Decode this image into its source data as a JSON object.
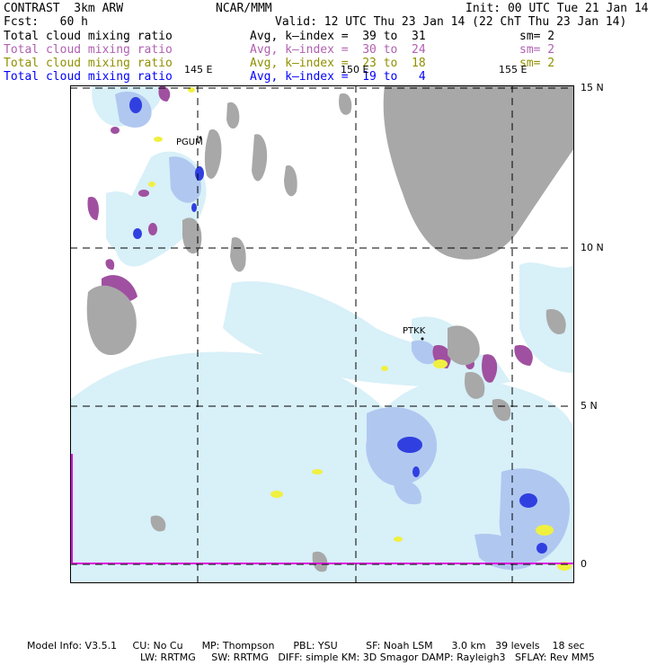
{
  "header": {
    "model": "CONTRAST  3km ARW",
    "center": "NCAR/MMM",
    "init": "Init: 00 UTC Tue 21 Jan 14",
    "fcst": "Fcst:   60 h",
    "valid": "Valid: 12 UTC Thu 23 Jan 14 (22 ChT Thu 23 Jan 14)"
  },
  "fields": [
    {
      "name": "Total cloud mixing ratio",
      "avg": "Avg, k–index =  39 to  31",
      "sm": "sm= 2",
      "color": "#000000"
    },
    {
      "name": "Total cloud mixing ratio",
      "avg": "Avg, k–index =  30 to  24",
      "sm": "sm= 2",
      "color": "#b060b0"
    },
    {
      "name": "Total cloud mixing ratio",
      "avg": "Avg, k–index =  23 to  18",
      "sm": "sm= 2",
      "color": "#909000"
    },
    {
      "name": "Total cloud mixing ratio",
      "avg": "Avg, k–index =  19 to   4",
      "sm": "",
      "color": "#0000ff"
    }
  ],
  "map": {
    "lon_labels": [
      "145 E",
      "150 E",
      "155 E"
    ],
    "lat_labels": [
      "15 N",
      "10 N",
      "5 N",
      "0"
    ],
    "stations": [
      "PGUM",
      "PTKK"
    ],
    "colors": {
      "land": "#a8a8a8",
      "cloud_light": "#d8f0f8",
      "cloud_mid": "#b0c8f0",
      "cloud_dark": "#3040e0",
      "magenta": "#a050a0",
      "yellow": "#f0f040",
      "frame": "#e000e0"
    }
  },
  "footer": {
    "line1": "Model Info: V3.5.1     CU: No Cu      MP: Thompson      PBL: YSU         SF: Noah LSM      3.0 km   39 levels    18 sec",
    "line2": "LW: RRTMG     SW: RRTMG   DIFF: simple KM: 3D Smagor DAMP: Rayleigh3   SFLAY: Rev MM5"
  }
}
